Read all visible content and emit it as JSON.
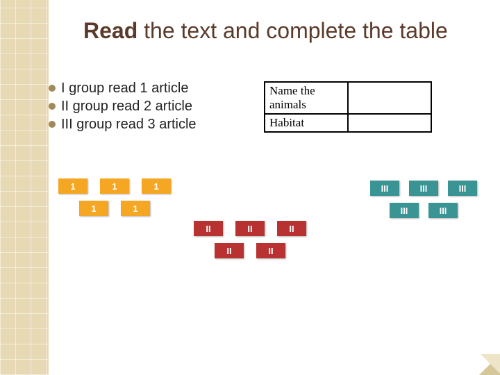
{
  "title": {
    "bold": "Read",
    "rest": " the text and complete the table"
  },
  "bullets": [
    "I group read 1 article",
    "II group read 2 article",
    "III group read 3 article"
  ],
  "table": {
    "rows": [
      [
        "Name the animals",
        ""
      ],
      [
        "Habitat",
        ""
      ]
    ]
  },
  "groups": {
    "g1": {
      "label": "1",
      "row1_count": 3,
      "row2_count": 2
    },
    "g2": {
      "label": "II",
      "row1_count": 3,
      "row2_count": 2
    },
    "g3": {
      "label": "III",
      "row1_count": 3,
      "row2_count": 2
    }
  },
  "colors": {
    "stripe_bg": "#e8d9b5",
    "title_color": "#5a3a2a",
    "chip1": "#f5a623",
    "chip2": "#b83232",
    "chip3": "#3a9494"
  }
}
